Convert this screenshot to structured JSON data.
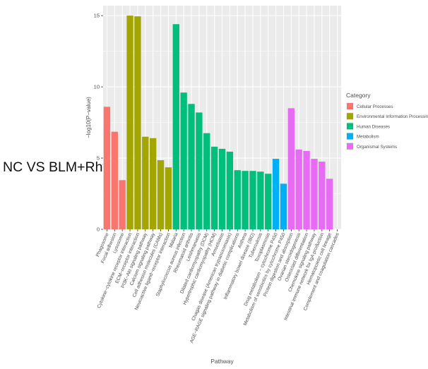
{
  "side_label": "NC VS BLM+Rhy",
  "chart_data": {
    "type": "bar",
    "xlabel": "Pathway",
    "ylabel": "−log10(P−value)",
    "ylim": [
      0,
      15.7
    ],
    "yticks": [
      0,
      5,
      10,
      15
    ],
    "grid": true,
    "legend": {
      "title": "Category",
      "placement": "right",
      "entries": [
        {
          "name": "Cellular Processes",
          "color": "#F8766D"
        },
        {
          "name": "Environmental Information Processing",
          "color": "#A3A500"
        },
        {
          "name": "Human Diseases",
          "color": "#00BF7D"
        },
        {
          "name": "Metabolism",
          "color": "#00B0F6"
        },
        {
          "name": "Organismal Systems",
          "color": "#E76BF3"
        }
      ]
    },
    "categories": [
      "Phagosome",
      "Focal adhesion",
      "Lysosome",
      "Cytokine−cytokine receptor interaction",
      "ECM−receptor interaction",
      "PI3K−Akt signaling pathway",
      "Calcium signaling pathway",
      "Cell adhesion molecules (CAMs)",
      "Neuroactive ligand−receptor interaction",
      "Malaria",
      "Staphylococcus aureus infection",
      "Rheumatoid arthritis",
      "Leishmaniasis",
      "Dilated cardiomyopathy (DCM)",
      "Hypertrophic cardiomyopathy (HCM)",
      "Amoebiasis",
      "Chagas disease (American trypanosomiasis)",
      "AGE−RAGE signaling pathway in diabetic complications",
      "Asthma",
      "Inflammatory bowel disease (IBD)",
      "Tuberculosis",
      "Toxoplasmosis",
      "Drug metabolism − cytochrome P450",
      "Metabolism of xenobiotics by cytochrome P450",
      "Protein digestion and absorption",
      "Ovarian steroidogenesis",
      "Osteoclast differentiation",
      "Chemokine signaling pathway",
      "Intestinal immune network for IgA production",
      "Hematopoietic cell lineage",
      "Complement and coagulation cascades"
    ],
    "values": [
      8.6,
      6.85,
      3.45,
      15.0,
      14.95,
      6.5,
      6.4,
      4.85,
      4.35,
      14.4,
      9.6,
      8.8,
      8.2,
      6.75,
      5.8,
      5.65,
      5.45,
      4.15,
      4.1,
      4.1,
      4.05,
      3.9,
      4.95,
      3.2,
      8.5,
      5.6,
      5.5,
      4.95,
      4.75,
      3.55,
      0
    ],
    "value_categories": [
      "Cellular Processes",
      "Cellular Processes",
      "Cellular Processes",
      "Environmental Information Processing",
      "Environmental Information Processing",
      "Environmental Information Processing",
      "Environmental Information Processing",
      "Environmental Information Processing",
      "Environmental Information Processing",
      "Human Diseases",
      "Human Diseases",
      "Human Diseases",
      "Human Diseases",
      "Human Diseases",
      "Human Diseases",
      "Human Diseases",
      "Human Diseases",
      "Human Diseases",
      "Human Diseases",
      "Human Diseases",
      "Human Diseases",
      "Human Diseases",
      "Metabolism",
      "Metabolism",
      "Organismal Systems",
      "Organismal Systems",
      "Organismal Systems",
      "Organismal Systems",
      "Organismal Systems",
      "Organismal Systems",
      "Organismal Systems"
    ]
  }
}
